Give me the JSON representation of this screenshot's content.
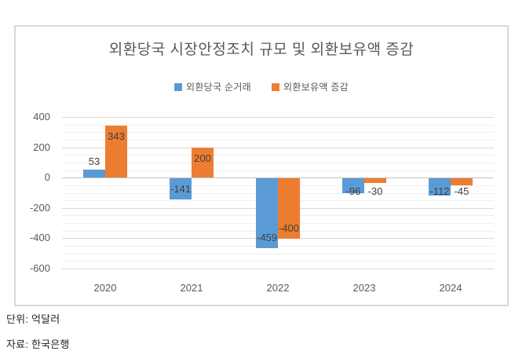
{
  "chart": {
    "title": "외환당국 시장안정조치 규모 및 외환보유액 증감"
  },
  "notes": {
    "unit": "단위: 억달러",
    "source": "자료: 한국은행"
  },
  "colors": {
    "series_blue": "#5B9BD5",
    "series_orange": "#ED7D31",
    "major_grid": "#D9D9D9",
    "minor_grid": "#EFEFEF",
    "axis_text": "#595959",
    "data_label_text": "#404040",
    "frame_border": "#D9D9D9"
  },
  "chart_data": {
    "type": "bar",
    "title": "외환당국 시장안정조치 규모 및 외환보유액 증감",
    "categories": [
      "2020",
      "2021",
      "2022",
      "2023",
      "2024"
    ],
    "series": [
      {
        "name": "외환당국 순거래",
        "color": "#5B9BD5",
        "values": [
          53,
          -141,
          -459,
          -96,
          -112
        ]
      },
      {
        "name": "외환보유액 증감",
        "color": "#ED7D31",
        "values": [
          343,
          200,
          -400,
          -30,
          -45
        ]
      }
    ],
    "xlabel": "",
    "ylabel": "",
    "ylim": [
      -600,
      400
    ],
    "y_ticks": [
      400,
      200,
      0,
      -200,
      -400,
      -600
    ],
    "y_minor_step": 50,
    "grid": true,
    "legend_position": "top-center",
    "unit_note": "단위: 억달러",
    "source_note": "자료: 한국은행"
  }
}
